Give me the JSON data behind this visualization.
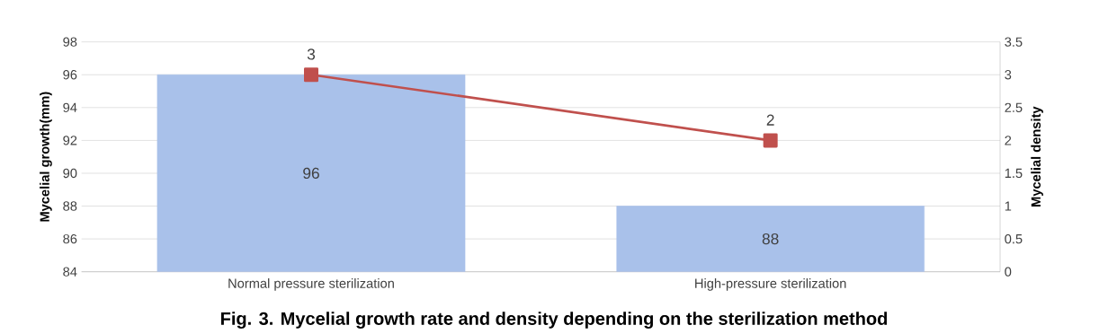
{
  "chart_data": {
    "type": "bar",
    "title": "Fig. 3. Mycelial growth rate and density depending on the sterilization method",
    "ylabel": "Mycelial growth(mm)",
    "y2label": "Mycelial density",
    "categories": [
      "Normal pressure sterilization",
      "High-pressure sterilization"
    ],
    "series": [
      {
        "colors": [
          "#a9c1ea",
          "#a9c1ea"
        ],
        "values": [
          96,
          88
        ]
      },
      {
        "type": "line",
        "axis": "y2",
        "color": "#c0504d",
        "values": [
          3,
          2
        ]
      }
    ],
    "ylim": [
      84,
      98
    ],
    "yticks": [
      84,
      86,
      88,
      90,
      92,
      94,
      96,
      98
    ],
    "y2lim": [
      0,
      3.5
    ],
    "y2ticks": [
      0,
      0.5,
      1,
      1.5,
      2,
      2.5,
      3,
      3.5
    ],
    "grid": "y",
    "data_labels": true,
    "marker": "square",
    "line_style": "solid"
  }
}
